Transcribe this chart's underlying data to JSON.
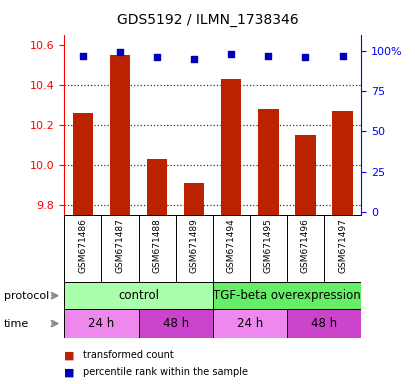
{
  "title": "GDS5192 / ILMN_1738346",
  "samples": [
    "GSM671486",
    "GSM671487",
    "GSM671488",
    "GSM671489",
    "GSM671494",
    "GSM671495",
    "GSM671496",
    "GSM671497"
  ],
  "bar_values": [
    10.26,
    10.55,
    10.03,
    9.91,
    10.43,
    10.28,
    10.15,
    10.27
  ],
  "percentile_values": [
    97,
    99,
    96,
    95,
    98,
    97,
    96,
    97
  ],
  "ylim_left": [
    9.75,
    10.65
  ],
  "ylim_right": [
    -2,
    110
  ],
  "yticks_left": [
    9.8,
    10.0,
    10.2,
    10.4,
    10.6
  ],
  "yticks_right": [
    0,
    25,
    50,
    75,
    100
  ],
  "bar_color": "#bb2200",
  "dot_color": "#0000bb",
  "bar_bottom": 9.75,
  "protocol_colors": [
    "#aaffaa",
    "#66dd66"
  ],
  "time_colors": [
    "#ee88ee",
    "#cc44cc",
    "#ee88ee",
    "#cc44cc"
  ],
  "legend_items": [
    {
      "label": "transformed count",
      "color": "#bb2200"
    },
    {
      "label": "percentile rank within the sample",
      "color": "#0000bb"
    }
  ],
  "dotted_line_color": "black",
  "grid_alpha": 0.8,
  "protocol_label": "protocol",
  "time_label": "time"
}
